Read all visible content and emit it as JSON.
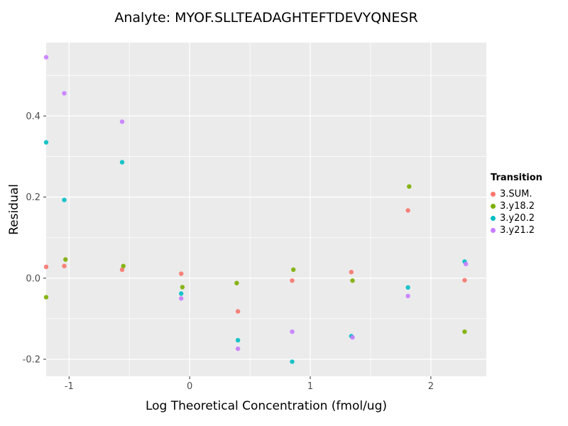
{
  "chart_data": {
    "type": "scatter",
    "title": "Analyte: MYOF.SLLTEADAGHTEFTDEVYQNESR",
    "xlabel": "Log Theoretical Concentration (fmol/ug)",
    "ylabel": "Residual",
    "legend_title": "Transition",
    "legend_position": "right",
    "grid": true,
    "xlim": [
      -1.19,
      2.46
    ],
    "ylim": [
      -0.242,
      0.581
    ],
    "x_ticks": [
      -1,
      0,
      1,
      2
    ],
    "x_tick_labels": [
      "-1",
      "0",
      "1",
      "2"
    ],
    "y_ticks": [
      0.4,
      0.2,
      0.0,
      -0.2
    ],
    "y_tick_labels": [
      "0.4",
      "0.2",
      "0.0",
      "-0.2"
    ],
    "x_minor_ticks": [
      -0.5,
      0.5,
      1.5
    ],
    "y_minor_ticks": [
      0.5,
      0.3,
      0.1,
      -0.1
    ],
    "series": [
      {
        "name": "3.SUM.",
        "color": "#F8766D",
        "points": [
          [
            -1.19,
            0.028
          ],
          [
            -1.04,
            0.03
          ],
          [
            -0.56,
            0.021
          ],
          [
            -0.07,
            0.011
          ],
          [
            0.4,
            -0.082
          ],
          [
            0.85,
            -0.006
          ],
          [
            1.34,
            0.015
          ],
          [
            1.81,
            0.167
          ],
          [
            2.28,
            -0.005
          ]
        ]
      },
      {
        "name": "3.y18.2",
        "color": "#7CAE00",
        "points": [
          [
            -1.19,
            -0.047
          ],
          [
            -1.03,
            0.046
          ],
          [
            -0.55,
            0.03
          ],
          [
            -0.06,
            -0.022
          ],
          [
            0.39,
            -0.012
          ],
          [
            0.86,
            0.021
          ],
          [
            1.35,
            -0.006
          ],
          [
            1.82,
            0.226
          ],
          [
            2.28,
            -0.132
          ]
        ]
      },
      {
        "name": "3.y20.2",
        "color": "#00BFC4",
        "points": [
          [
            -1.19,
            0.335
          ],
          [
            -1.04,
            0.193
          ],
          [
            -0.56,
            0.286
          ],
          [
            -0.07,
            -0.038
          ],
          [
            0.4,
            -0.153
          ],
          [
            0.85,
            -0.206
          ],
          [
            1.34,
            -0.143
          ],
          [
            1.81,
            -0.023
          ],
          [
            2.28,
            0.041
          ]
        ]
      },
      {
        "name": "3.y21.2",
        "color": "#C77CFF",
        "points": [
          [
            -1.19,
            0.545
          ],
          [
            -1.04,
            0.456
          ],
          [
            -0.56,
            0.386
          ],
          [
            -0.07,
            -0.05
          ],
          [
            0.4,
            -0.174
          ],
          [
            0.85,
            -0.132
          ],
          [
            1.35,
            -0.146
          ],
          [
            1.81,
            -0.044
          ],
          [
            2.29,
            0.035
          ]
        ]
      }
    ]
  },
  "colors": {
    "panel_bg": "#EBEBEB",
    "gridline": "#FFFFFF",
    "tick_label": "#4D4D4D",
    "tick_mark": "#333333"
  }
}
